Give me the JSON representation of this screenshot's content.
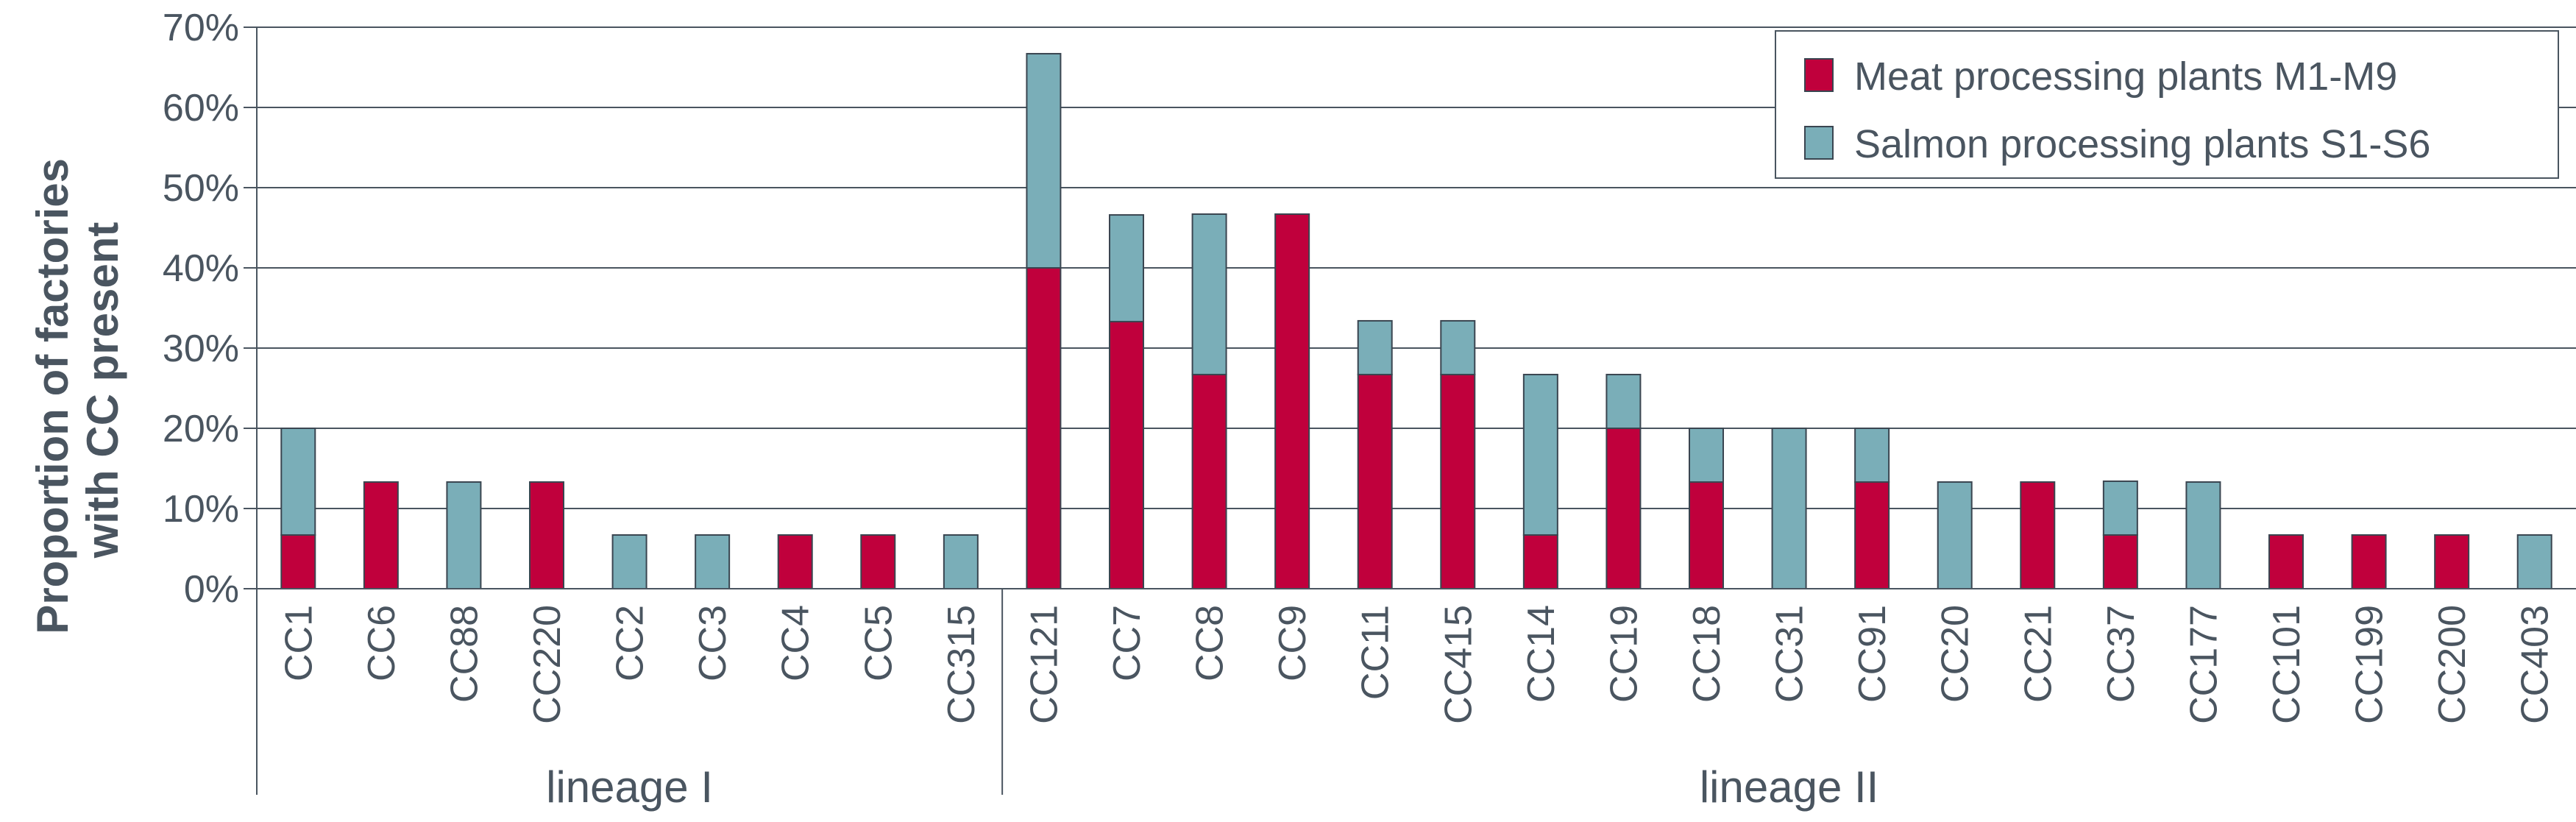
{
  "chart_data": {
    "type": "bar",
    "stacked": true,
    "ylabel_lines": [
      "Proportion of factories",
      "with CC present"
    ],
    "ylim": [
      0,
      70
    ],
    "yticks": [
      0,
      10,
      20,
      30,
      40,
      50,
      60,
      70
    ],
    "ytick_labels": [
      "0%",
      "10%",
      "20%",
      "30%",
      "40%",
      "50%",
      "60%",
      "70%"
    ],
    "grid": true,
    "legend_position": "top-right",
    "categories": [
      "CC1",
      "CC6",
      "CC88",
      "CC220",
      "CC2",
      "CC3",
      "CC4",
      "CC5",
      "CC315",
      "CC121",
      "CC7",
      "CC8",
      "CC9",
      "CC11",
      "CC415",
      "CC14",
      "CC19",
      "CC18",
      "CC31",
      "CC91",
      "CC20",
      "CC21",
      "CC37",
      "CC177",
      "CC101",
      "CC199",
      "CC200",
      "CC403"
    ],
    "groups": [
      {
        "label": "lineage I",
        "count": 9
      },
      {
        "label": "lineage II",
        "count": 19
      }
    ],
    "series": [
      {
        "name": "Meat processing plants M1-M9",
        "color": "#c0003c",
        "values": [
          6.7,
          13.3,
          0,
          13.3,
          0,
          0,
          6.7,
          6.7,
          0,
          40,
          33.3,
          26.7,
          46.7,
          26.7,
          26.7,
          6.7,
          20,
          13.3,
          0,
          13.3,
          0,
          13.3,
          6.7,
          0,
          6.7,
          6.7,
          6.7,
          0
        ]
      },
      {
        "name": "Salmon processing plants S1-S6",
        "color": "#7aaeb8",
        "values": [
          13.3,
          0,
          13.3,
          0,
          6.7,
          6.7,
          0,
          0,
          6.7,
          26.7,
          13.3,
          20,
          0,
          6.7,
          6.7,
          20,
          6.7,
          6.7,
          20,
          6.7,
          13.3,
          0,
          6.7,
          13.3,
          0,
          0,
          0,
          6.7
        ]
      }
    ]
  }
}
